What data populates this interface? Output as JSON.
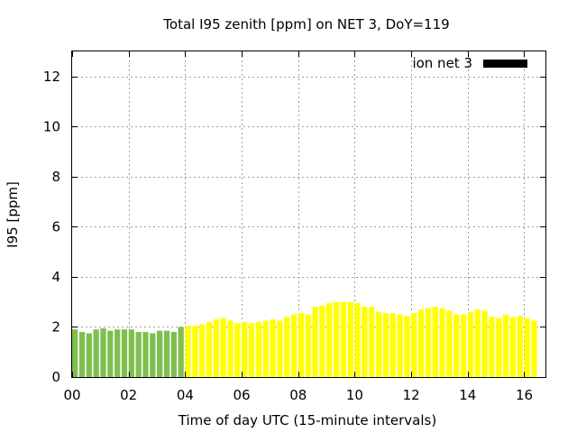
{
  "chart_data": {
    "type": "bar",
    "title": "Total I95 zenith [ppm] on NET 3, DoY=119",
    "xlabel": "Time of day UTC (15-minute intervals)",
    "ylabel": "I95 [ppm]",
    "xlim": [
      0,
      16.75
    ],
    "ylim": [
      0,
      13
    ],
    "x_ticks": [
      "00",
      "02",
      "04",
      "06",
      "08",
      "10",
      "12",
      "14",
      "16"
    ],
    "y_ticks": [
      "0",
      "2",
      "4",
      "6",
      "8",
      "10",
      "12"
    ],
    "grid": true,
    "legend": {
      "label": "ion net 3",
      "position": "top-right",
      "color": "#000000"
    },
    "interval_hours": 0.25,
    "series": [
      {
        "color_rule": "green up to 03:45, yellow from 04:00",
        "colors": {
          "early": "#7fbf4f",
          "late": "#ffff00"
        },
        "values": [
          1.9,
          1.8,
          1.75,
          1.9,
          1.95,
          1.85,
          1.9,
          1.9,
          1.9,
          1.8,
          1.8,
          1.75,
          1.85,
          1.85,
          1.8,
          2.0,
          2.05,
          2.05,
          2.1,
          2.2,
          2.3,
          2.35,
          2.25,
          2.15,
          2.2,
          2.15,
          2.2,
          2.25,
          2.3,
          2.25,
          2.4,
          2.5,
          2.55,
          2.5,
          2.8,
          2.85,
          2.95,
          3.0,
          3.0,
          3.0,
          2.95,
          2.8,
          2.8,
          2.6,
          2.55,
          2.55,
          2.5,
          2.45,
          2.55,
          2.7,
          2.75,
          2.8,
          2.75,
          2.65,
          2.5,
          2.5,
          2.6,
          2.7,
          2.65,
          2.4,
          2.35,
          2.5,
          2.4,
          2.45,
          2.35,
          2.25
        ]
      }
    ]
  }
}
